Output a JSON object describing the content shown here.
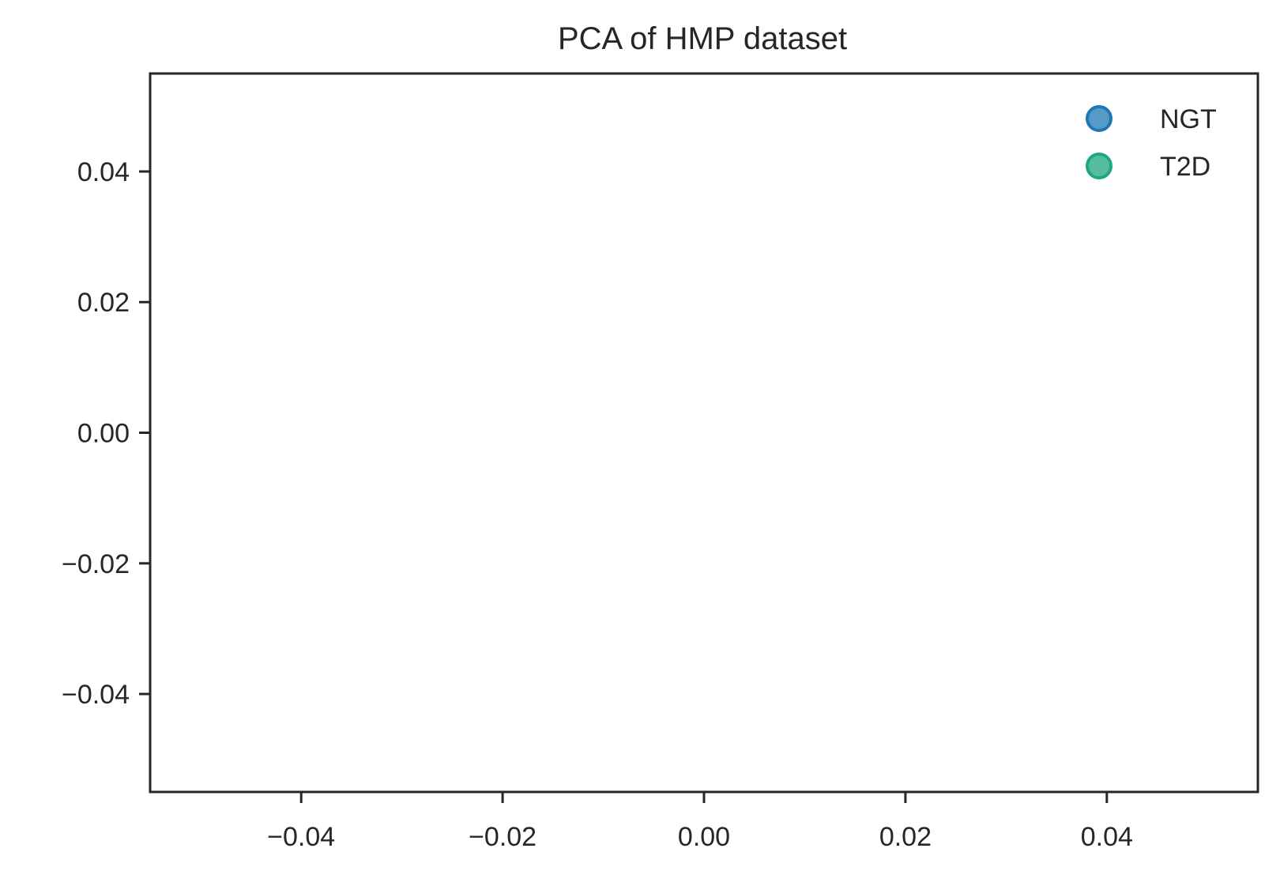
{
  "chart_data": {
    "type": "scatter",
    "title": "PCA of HMP dataset",
    "xlabel": "",
    "ylabel": "",
    "xlim": [
      -0.055,
      0.055
    ],
    "ylim": [
      -0.055,
      0.055
    ],
    "xticks": [
      -0.04,
      -0.02,
      0.0,
      0.02,
      0.04
    ],
    "yticks": [
      -0.04,
      -0.02,
      0.0,
      0.02,
      0.04
    ],
    "xtick_labels": [
      "−0.04",
      "−0.02",
      "0.00",
      "0.02",
      "0.04"
    ],
    "ytick_labels": [
      "−0.04",
      "−0.02",
      "0.00",
      "0.02",
      "0.04"
    ],
    "grid": false,
    "legend_position": "top-right",
    "series": [
      {
        "name": "NGT",
        "color": "#1f77b4",
        "points": []
      },
      {
        "name": "T2D",
        "color": "#1fa77f",
        "points": []
      }
    ]
  }
}
